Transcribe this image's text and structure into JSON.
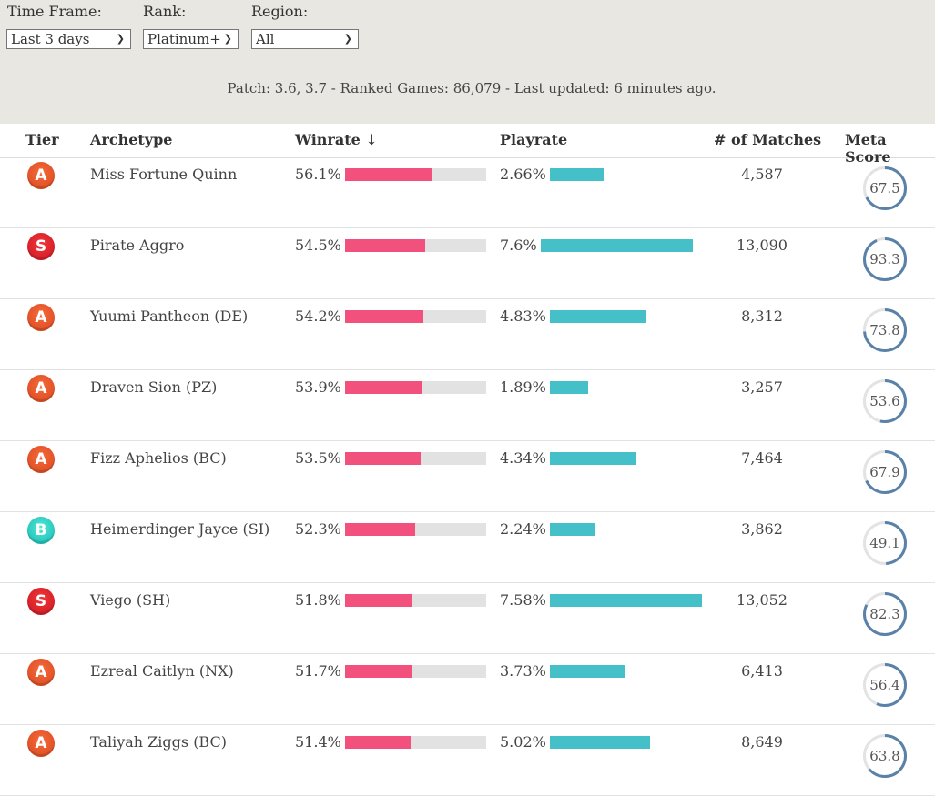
{
  "filters": {
    "timeframe": {
      "label": "Time Frame:",
      "value": "Last 3 days"
    },
    "rank": {
      "label": "Rank:",
      "value": "Platinum+"
    },
    "region": {
      "label": "Region:",
      "value": "All"
    },
    "patch_info": "Patch: 3.6, 3.7 - Ranked Games: 86,079 - Last updated: 6 minutes ago."
  },
  "columns": {
    "tier": "Tier",
    "archetype": "Archetype",
    "winrate": "Winrate ↓",
    "playrate": "Playrate",
    "matches": "# of Matches",
    "meta_score": "Meta Score"
  },
  "colors": {
    "winrate_bar": "#f2507d",
    "playrate_bar": "#45bfc8",
    "bar_track": "#e2e2e2",
    "meta_ring": "#5a82a8",
    "meta_ring_track": "#e3e3e3"
  },
  "rows": [
    {
      "tier": "A",
      "archetype": "Miss Fortune Quinn",
      "winrate": "56.1%",
      "winrate_value": 56.1,
      "playrate": "2.66%",
      "playrate_value": 2.66,
      "matches": "4,587",
      "meta_score": "67.5"
    },
    {
      "tier": "S",
      "archetype": "Pirate Aggro",
      "winrate": "54.5%",
      "winrate_value": 54.5,
      "playrate": "7.6%",
      "playrate_value": 7.6,
      "matches": "13,090",
      "meta_score": "93.3"
    },
    {
      "tier": "A",
      "archetype": "Yuumi Pantheon (DE)",
      "winrate": "54.2%",
      "winrate_value": 54.2,
      "playrate": "4.83%",
      "playrate_value": 4.83,
      "matches": "8,312",
      "meta_score": "73.8"
    },
    {
      "tier": "A",
      "archetype": "Draven Sion (PZ)",
      "winrate": "53.9%",
      "winrate_value": 53.9,
      "playrate": "1.89%",
      "playrate_value": 1.89,
      "matches": "3,257",
      "meta_score": "53.6"
    },
    {
      "tier": "A",
      "archetype": "Fizz Aphelios (BC)",
      "winrate": "53.5%",
      "winrate_value": 53.5,
      "playrate": "4.34%",
      "playrate_value": 4.34,
      "matches": "7,464",
      "meta_score": "67.9"
    },
    {
      "tier": "B",
      "archetype": "Heimerdinger Jayce (SI)",
      "winrate": "52.3%",
      "winrate_value": 52.3,
      "playrate": "2.24%",
      "playrate_value": 2.24,
      "matches": "3,862",
      "meta_score": "49.1"
    },
    {
      "tier": "S",
      "archetype": "Viego (SH)",
      "winrate": "51.8%",
      "winrate_value": 51.8,
      "playrate": "7.58%",
      "playrate_value": 7.58,
      "matches": "13,052",
      "meta_score": "82.3"
    },
    {
      "tier": "A",
      "archetype": "Ezreal Caitlyn (NX)",
      "winrate": "51.7%",
      "winrate_value": 51.7,
      "playrate": "3.73%",
      "playrate_value": 3.73,
      "matches": "6,413",
      "meta_score": "56.4"
    },
    {
      "tier": "A",
      "archetype": "Taliyah Ziggs (BC)",
      "winrate": "51.4%",
      "winrate_value": 51.4,
      "playrate": "5.02%",
      "playrate_value": 5.02,
      "matches": "8,649",
      "meta_score": "63.8"
    }
  ]
}
